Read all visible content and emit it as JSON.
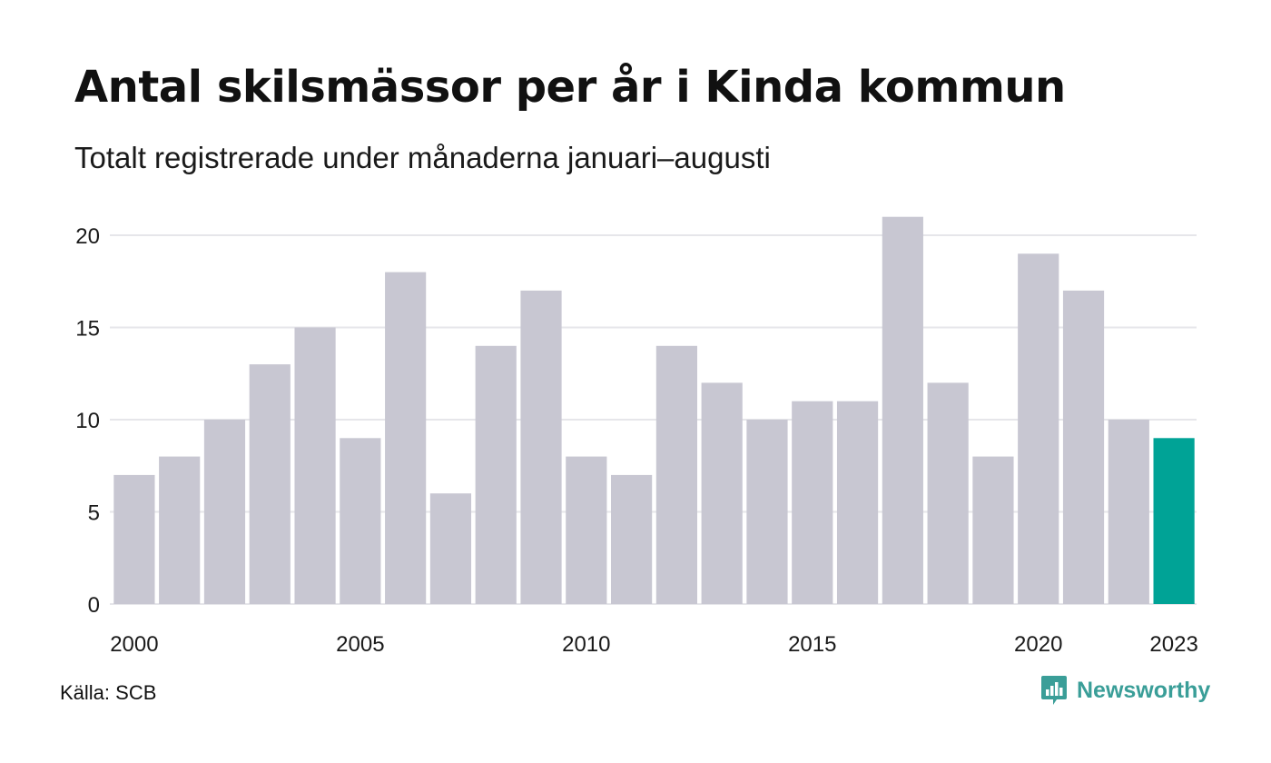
{
  "header": {
    "title": "Antal skilsmässor per år i Kinda kommun",
    "subtitle": "Totalt registrerade under månaderna januari–augusti"
  },
  "footer": {
    "source": "Källa: SCB",
    "brand": "Newsworthy"
  },
  "colors": {
    "bar": "#c8c7d2",
    "highlight": "#00a396",
    "grid": "#e6e6ea",
    "brand": "#3a9e98"
  },
  "chart_data": {
    "type": "bar",
    "title": "Antal skilsmässor per år i Kinda kommun",
    "subtitle": "Totalt registrerade under månaderna januari–augusti",
    "categories": [
      "2000",
      "2001",
      "2002",
      "2003",
      "2004",
      "2005",
      "2006",
      "2007",
      "2008",
      "2009",
      "2010",
      "2011",
      "2012",
      "2013",
      "2014",
      "2015",
      "2016",
      "2017",
      "2018",
      "2019",
      "2020",
      "2021",
      "2022",
      "2023"
    ],
    "values": [
      7,
      8,
      10,
      13,
      15,
      9,
      18,
      6,
      14,
      17,
      8,
      7,
      14,
      12,
      10,
      11,
      11,
      21,
      12,
      8,
      19,
      17,
      10,
      9
    ],
    "highlight_category": "2023",
    "x_tick_labels": [
      "2000",
      "2005",
      "2010",
      "2015",
      "2020",
      "2023"
    ],
    "y_ticks": [
      0,
      5,
      10,
      15,
      20
    ],
    "ylim": [
      0,
      21
    ],
    "grid": true,
    "xlabel": "",
    "ylabel": ""
  }
}
